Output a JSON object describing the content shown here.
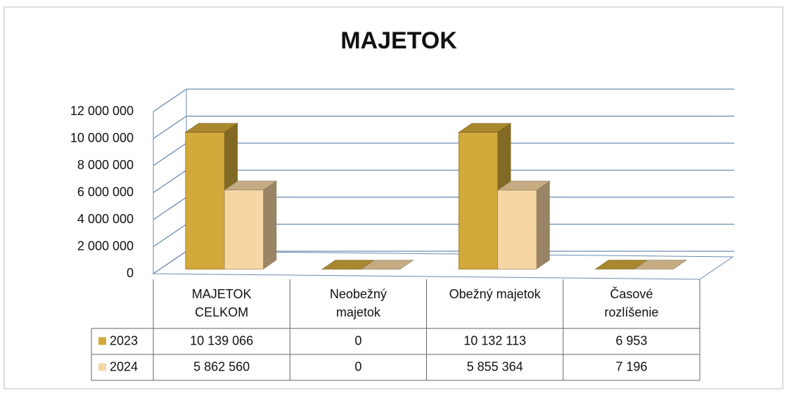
{
  "chart_data": {
    "type": "bar3d",
    "title": "MAJETOK",
    "categories": [
      "MAJETOK CELKOM",
      "Neobežný majetok",
      "Obežný majetok",
      "Časové rozlíšenie"
    ],
    "series": [
      {
        "name": "2023",
        "color": "#d2a93a",
        "values": [
          10139066,
          0,
          10132113,
          6953
        ],
        "value_labels": [
          "10 139 066",
          "0",
          "10 132 113",
          "6 953"
        ]
      },
      {
        "name": "2024",
        "color": "#f6d7a4",
        "values": [
          5862560,
          0,
          5855364,
          7196
        ],
        "value_labels": [
          "5 862 560",
          "0",
          "5 855 364",
          "7 196"
        ]
      }
    ],
    "ylim": [
      0,
      12000000
    ],
    "yticks": [
      0,
      {
        "value": 2000000,
        "label": "2 000 000"
      },
      {
        "value": 4000000,
        "label": "4 000 000"
      },
      {
        "value": 6000000,
        "label": "6 000 000"
      },
      {
        "value": 8000000,
        "label": "8 000 000"
      },
      {
        "value": 10000000,
        "label": "10 000 000"
      },
      {
        "value": 12000000,
        "label": "12 000 000"
      }
    ],
    "grid": true,
    "data_table": true
  }
}
